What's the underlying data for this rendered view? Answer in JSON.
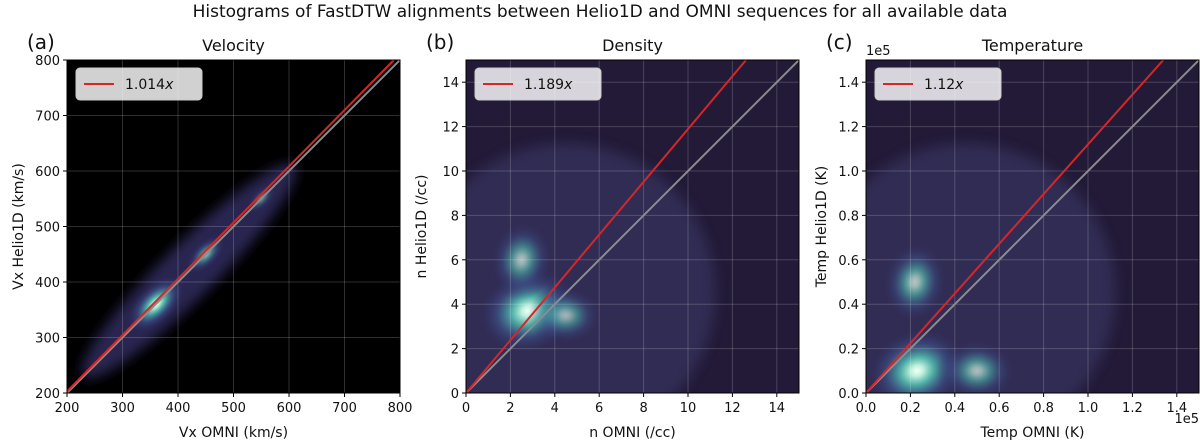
{
  "figure": {
    "suptitle": "Histograms of FastDTW alignments between Helio1D and OMNI sequences for all available data"
  },
  "colors": {
    "fit_line": "#d62728",
    "identity_line": "#8c8c8c",
    "background": "#000000"
  },
  "chart_data": [
    {
      "type": "heatmap",
      "panel_label": "(a)",
      "title": "Velocity",
      "xlabel": "Vx OMNI (km/s)",
      "ylabel": "Vx Helio1D (km/s)",
      "xlim": [
        200,
        800
      ],
      "ylim": [
        200,
        800
      ],
      "xticks": [
        "200",
        "300",
        "400",
        "500",
        "600",
        "700",
        "800"
      ],
      "yticks": [
        "200",
        "300",
        "400",
        "500",
        "600",
        "700",
        "800"
      ],
      "offset_x": "",
      "offset_y": "",
      "grid": true,
      "legend_position": "top-left",
      "legend": [
        {
          "label": "1.014",
          "suffix": "x",
          "slope": 1.014
        }
      ],
      "identity_line": true,
      "density_peaks": [
        {
          "x": 360,
          "y": 360,
          "weight": 1.0
        },
        {
          "x": 450,
          "y": 450,
          "weight": 0.45
        },
        {
          "x": 550,
          "y": 550,
          "weight": 0.15
        }
      ]
    },
    {
      "type": "heatmap",
      "panel_label": "(b)",
      "title": "Density",
      "xlabel": "n OMNI (/cc)",
      "ylabel": "n Helio1D (/cc)",
      "xlim": [
        0,
        15
      ],
      "ylim": [
        0,
        15
      ],
      "xticks": [
        "0",
        "2",
        "4",
        "6",
        "8",
        "10",
        "12",
        "14"
      ],
      "yticks": [
        "0",
        "2",
        "4",
        "6",
        "8",
        "10",
        "12",
        "14"
      ],
      "offset_x": "",
      "offset_y": "",
      "grid": true,
      "legend_position": "top-left",
      "legend": [
        {
          "label": "1.189",
          "suffix": "x",
          "slope": 1.189
        }
      ],
      "identity_line": true,
      "density_peaks": [
        {
          "x": 2.8,
          "y": 3.7,
          "weight": 1.0
        },
        {
          "x": 2.5,
          "y": 6.0,
          "weight": 0.5
        },
        {
          "x": 4.5,
          "y": 3.5,
          "weight": 0.4
        }
      ]
    },
    {
      "type": "heatmap",
      "panel_label": "(c)",
      "title": "Temperature",
      "xlabel": "Temp OMNI (K)",
      "ylabel": "Temp Helio1D (K)",
      "xlim": [
        0,
        1.5
      ],
      "ylim": [
        0,
        1.5
      ],
      "xticks": [
        "0.0",
        "0.2",
        "0.4",
        "0.6",
        "0.8",
        "1.0",
        "1.2",
        "1.4"
      ],
      "yticks": [
        "0.0",
        "0.2",
        "0.4",
        "0.6",
        "0.8",
        "1.0",
        "1.2",
        "1.4"
      ],
      "offset_x": "1e5",
      "offset_y": "1e5",
      "grid": true,
      "legend_position": "top-left",
      "legend": [
        {
          "label": "1.12",
          "suffix": "x",
          "slope": 1.12
        }
      ],
      "identity_line": true,
      "density_peaks": [
        {
          "x": 0.23,
          "y": 0.1,
          "weight": 1.0
        },
        {
          "x": 0.22,
          "y": 0.5,
          "weight": 0.55
        },
        {
          "x": 0.5,
          "y": 0.1,
          "weight": 0.5
        }
      ]
    }
  ]
}
